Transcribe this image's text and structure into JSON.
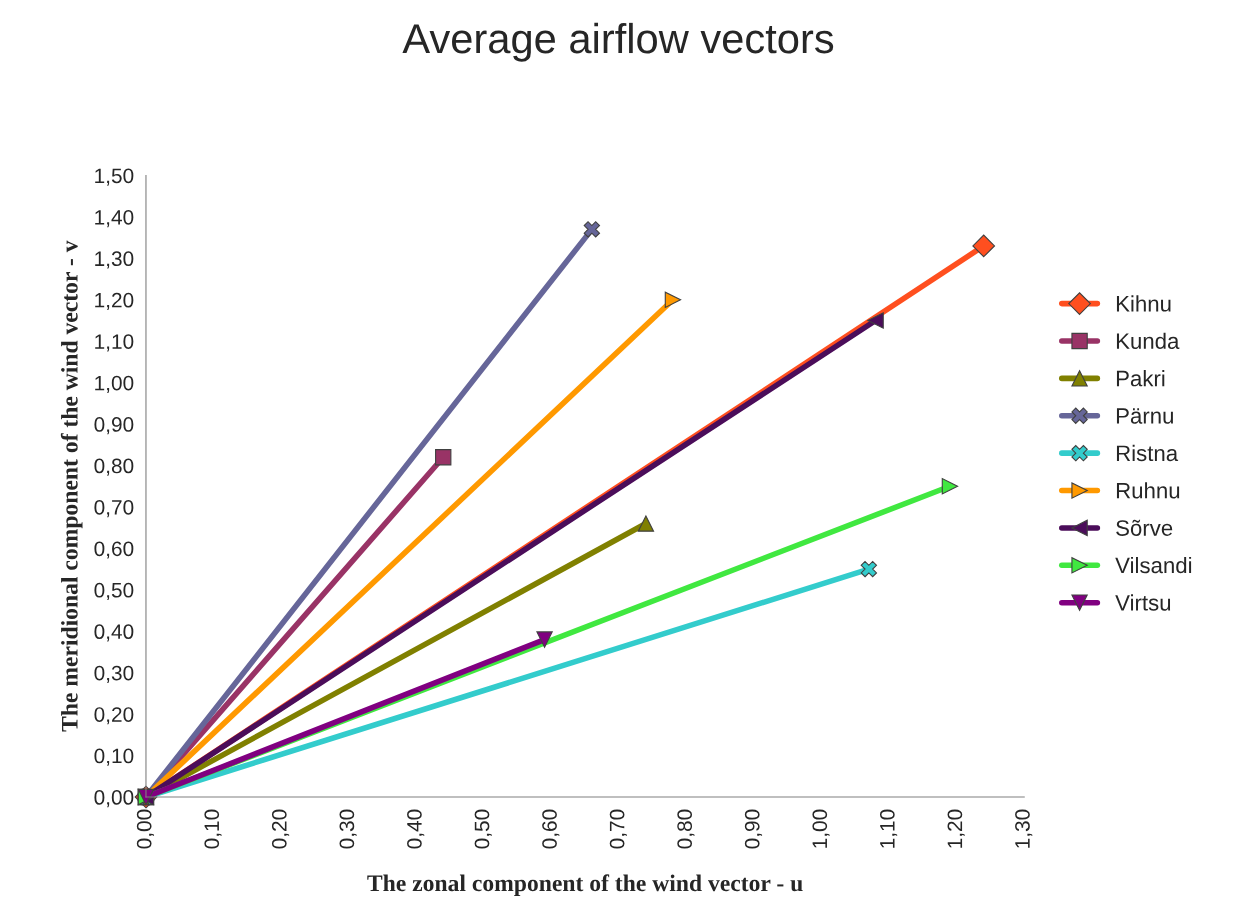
{
  "chart_data": {
    "type": "line",
    "title": "Average airflow vectors",
    "xlabel": "The zonal component of the wind vector - u",
    "ylabel": "The meridional component of the wind vector - v",
    "xlim": [
      0,
      1.3
    ],
    "ylim": [
      0,
      1.5
    ],
    "xticks": [
      {
        "value": 0,
        "label": "0,00"
      },
      {
        "value": 0.1,
        "label": "0,10"
      },
      {
        "value": 0.2,
        "label": "0,20"
      },
      {
        "value": 0.3,
        "label": "0,30"
      },
      {
        "value": 0.4,
        "label": "0,40"
      },
      {
        "value": 0.5,
        "label": "0,50"
      },
      {
        "value": 0.6,
        "label": "0,60"
      },
      {
        "value": 0.7,
        "label": "0,70"
      },
      {
        "value": 0.8,
        "label": "0,80"
      },
      {
        "value": 0.9,
        "label": "0,90"
      },
      {
        "value": 1.0,
        "label": "1,00"
      },
      {
        "value": 1.1,
        "label": "1,10"
      },
      {
        "value": 1.2,
        "label": "1,20"
      },
      {
        "value": 1.3,
        "label": "1,30"
      }
    ],
    "yticks": [
      {
        "value": 0,
        "label": "0,00"
      },
      {
        "value": 0.1,
        "label": "0,10"
      },
      {
        "value": 0.2,
        "label": "0,20"
      },
      {
        "value": 0.3,
        "label": "0,30"
      },
      {
        "value": 0.4,
        "label": "0,40"
      },
      {
        "value": 0.5,
        "label": "0,50"
      },
      {
        "value": 0.6,
        "label": "0,60"
      },
      {
        "value": 0.7,
        "label": "0,70"
      },
      {
        "value": 0.8,
        "label": "0,80"
      },
      {
        "value": 0.9,
        "label": "0,90"
      },
      {
        "value": 1.0,
        "label": "1,00"
      },
      {
        "value": 1.1,
        "label": "1,10"
      },
      {
        "value": 1.2,
        "label": "1,20"
      },
      {
        "value": 1.3,
        "label": "1,30"
      },
      {
        "value": 1.4,
        "label": "1,40"
      },
      {
        "value": 1.5,
        "label": "1,50"
      }
    ],
    "grid": false,
    "legend": "right",
    "line_style": "solid",
    "series": [
      {
        "name": "Kihnu",
        "color": "#ff4f1f",
        "marker": "diamond",
        "x": [
          0,
          1.24
        ],
        "values": [
          0,
          1.33
        ]
      },
      {
        "name": "Kunda",
        "color": "#993366",
        "marker": "square",
        "x": [
          0,
          0.44
        ],
        "values": [
          0,
          0.82
        ]
      },
      {
        "name": "Pakri",
        "color": "#808000",
        "marker": "triangle",
        "x": [
          0,
          0.74
        ],
        "values": [
          0,
          0.66
        ]
      },
      {
        "name": "Pärnu",
        "color": "#666699",
        "marker": "cross",
        "x": [
          0,
          0.66
        ],
        "values": [
          0,
          1.37
        ]
      },
      {
        "name": "Ristna",
        "color": "#33cccc",
        "marker": "cross",
        "x": [
          0,
          1.07
        ],
        "values": [
          0,
          0.55
        ]
      },
      {
        "name": "Ruhnu",
        "color": "#ff9900",
        "marker": "triangle_right",
        "x": [
          0,
          0.78
        ],
        "values": [
          0,
          1.2
        ]
      },
      {
        "name": "Sõrve",
        "color": "#4b0d5a",
        "marker": "triangle_left",
        "x": [
          0,
          1.08
        ],
        "values": [
          0,
          1.15
        ]
      },
      {
        "name": "Vilsandi",
        "color": "#40e840",
        "marker": "triangle_right",
        "x": [
          0,
          1.19
        ],
        "values": [
          0,
          0.75
        ]
      },
      {
        "name": "Virtsu",
        "color": "#800080",
        "marker": "triangle_down",
        "x": [
          0,
          0.59
        ],
        "values": [
          0,
          0.38
        ]
      }
    ]
  }
}
